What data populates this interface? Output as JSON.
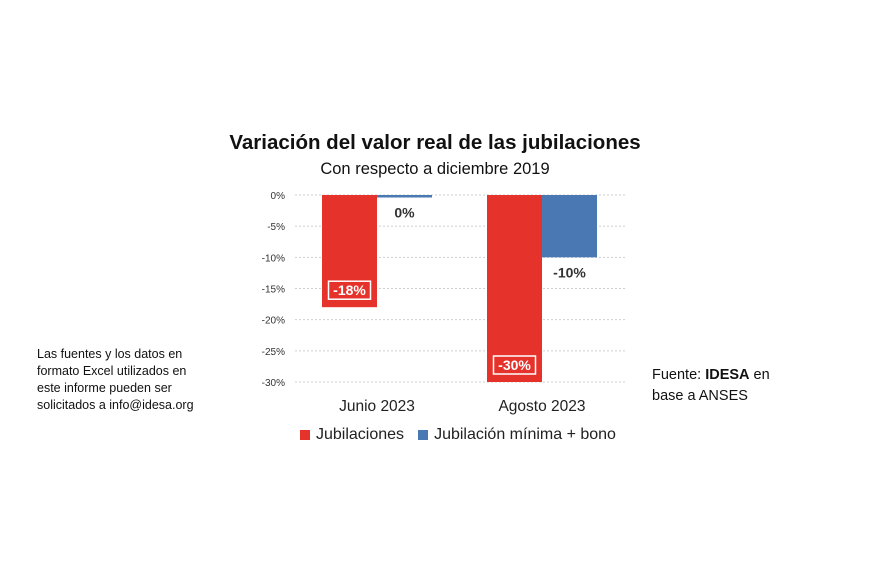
{
  "chart_data": {
    "type": "bar",
    "title": "Variación del valor real de las jubilaciones",
    "subtitle": "Con respecto a diciembre 2019",
    "categories": [
      "Junio 2023",
      "Agosto 2023"
    ],
    "series": [
      {
        "name": "Jubilaciones",
        "color": "#e5322b",
        "values": [
          -18,
          -30
        ],
        "labels": [
          "-18%",
          "-30%"
        ]
      },
      {
        "name": "Jubilación mínima + bono",
        "color": "#4a78b3",
        "values": [
          -0.4,
          -10
        ],
        "labels": [
          "0%",
          "-10%"
        ]
      }
    ],
    "yticks": [
      "0%",
      "-5%",
      "-10%",
      "-15%",
      "-20%",
      "-25%",
      "-30%"
    ],
    "ylim": [
      -30,
      0
    ],
    "grid": true,
    "legend": "bottom"
  },
  "notes": {
    "left": "Las fuentes y los datos en formato Excel utilizados en este informe pueden ser solicitados a info@idesa.org",
    "source_prefix": "Fuente: ",
    "source_org": "IDESA",
    "source_suffix": " en base a ANSES"
  }
}
